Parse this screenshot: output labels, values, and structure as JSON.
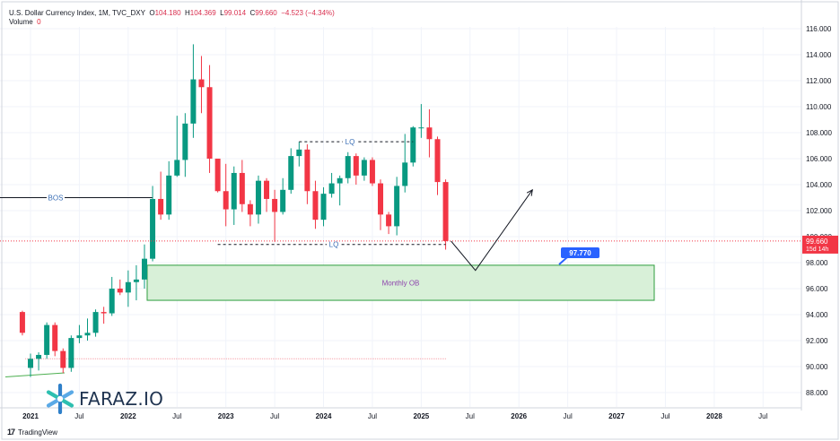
{
  "header": {
    "symbol_line": "U.S. Dollar Currency Index, 1M, TVC_DXY",
    "open_label": "O",
    "open": "104.180",
    "high_label": "H",
    "high": "104.369",
    "low_label": "L",
    "low": "99.014",
    "close_label": "C",
    "close": "99.660",
    "change": "−4.523 (−4.34%)",
    "volume_label": "Volume",
    "volume": "0"
  },
  "price_badge": {
    "price": "99.660",
    "countdown": "15d 14h",
    "color": "#f23645"
  },
  "target_badge": {
    "value": "97.770",
    "color": "#2962ff"
  },
  "annotations": {
    "bos": "BOS",
    "lq_top": "LQ",
    "lq_bottom": "LQ",
    "order_block": "Monthly OB"
  },
  "brand": {
    "name": "FARAZ.IO",
    "icon": "faraz-logo-icon"
  },
  "footer": {
    "logo": "17",
    "name": "TradingView",
    "icon": "tradingview-logo-icon"
  },
  "colors": {
    "up": "#089981",
    "down": "#f23645",
    "ob_fill": "#d8f0d8",
    "ob_border": "#2e9e3e",
    "lq": "#3b6fb6",
    "ob_text": "#8e44ad"
  },
  "chart_data": {
    "type": "candlestick",
    "timeframe": "1M",
    "symbol": "TVC_DXY",
    "y_range": [
      87,
      117
    ],
    "y_ticks": [
      "88.000",
      "90.000",
      "92.000",
      "94.000",
      "96.000",
      "98.000",
      "100.000",
      "102.000",
      "104.000",
      "106.000",
      "108.000",
      "110.000",
      "112.000",
      "114.000",
      "116.000"
    ],
    "x_ticks": [
      "2021",
      "Jul",
      "2022",
      "Jul",
      "2023",
      "Jul",
      "2024",
      "Jul",
      "2025",
      "Jul",
      "2026",
      "Jul",
      "2027",
      "Jul",
      "2028",
      "Jul"
    ],
    "candles": [
      {
        "d": "2020-12",
        "o": 94.2,
        "h": 94.3,
        "l": 92.4,
        "c": 92.6
      },
      {
        "d": "2021-01",
        "o": 89.9,
        "h": 91.0,
        "l": 89.2,
        "c": 90.6
      },
      {
        "d": "2021-02",
        "o": 90.6,
        "h": 91.1,
        "l": 89.7,
        "c": 90.9
      },
      {
        "d": "2021-03",
        "o": 90.9,
        "h": 93.4,
        "l": 90.6,
        "c": 93.2
      },
      {
        "d": "2021-04",
        "o": 93.2,
        "h": 93.4,
        "l": 90.8,
        "c": 91.2
      },
      {
        "d": "2021-05",
        "o": 91.2,
        "h": 91.4,
        "l": 89.5,
        "c": 89.9
      },
      {
        "d": "2021-06",
        "o": 89.9,
        "h": 92.4,
        "l": 89.6,
        "c": 92.2
      },
      {
        "d": "2021-07",
        "o": 92.2,
        "h": 93.2,
        "l": 91.8,
        "c": 92.4
      },
      {
        "d": "2021-08",
        "o": 92.4,
        "h": 93.7,
        "l": 92.0,
        "c": 92.6
      },
      {
        "d": "2021-09",
        "o": 92.6,
        "h": 94.4,
        "l": 92.3,
        "c": 94.2
      },
      {
        "d": "2021-10",
        "o": 94.2,
        "h": 94.6,
        "l": 93.3,
        "c": 94.1
      },
      {
        "d": "2021-11",
        "o": 94.1,
        "h": 96.9,
        "l": 93.9,
        "c": 96.0
      },
      {
        "d": "2021-12",
        "o": 96.0,
        "h": 96.7,
        "l": 95.5,
        "c": 95.7
      },
      {
        "d": "2022-01",
        "o": 95.7,
        "h": 97.4,
        "l": 94.6,
        "c": 96.5
      },
      {
        "d": "2022-02",
        "o": 96.5,
        "h": 97.8,
        "l": 95.1,
        "c": 96.7
      },
      {
        "d": "2022-03",
        "o": 96.7,
        "h": 99.4,
        "l": 96.0,
        "c": 98.3
      },
      {
        "d": "2022-04",
        "o": 98.3,
        "h": 103.9,
        "l": 98.1,
        "c": 102.9
      },
      {
        "d": "2022-05",
        "o": 102.9,
        "h": 105.0,
        "l": 101.3,
        "c": 101.7
      },
      {
        "d": "2022-06",
        "o": 101.7,
        "h": 105.8,
        "l": 101.3,
        "c": 104.7
      },
      {
        "d": "2022-07",
        "o": 104.7,
        "h": 109.3,
        "l": 104.6,
        "c": 105.9
      },
      {
        "d": "2022-08",
        "o": 105.9,
        "h": 109.5,
        "l": 104.6,
        "c": 108.7
      },
      {
        "d": "2022-09",
        "o": 108.7,
        "h": 114.8,
        "l": 107.6,
        "c": 112.1
      },
      {
        "d": "2022-10",
        "o": 112.1,
        "h": 113.9,
        "l": 109.5,
        "c": 111.5
      },
      {
        "d": "2022-11",
        "o": 111.5,
        "h": 113.2,
        "l": 104.9,
        "c": 106.0
      },
      {
        "d": "2022-12",
        "o": 106.0,
        "h": 106.0,
        "l": 103.4,
        "c": 103.5
      },
      {
        "d": "2023-01",
        "o": 103.5,
        "h": 105.6,
        "l": 100.8,
        "c": 102.1
      },
      {
        "d": "2023-02",
        "o": 102.1,
        "h": 105.4,
        "l": 100.9,
        "c": 104.9
      },
      {
        "d": "2023-03",
        "o": 104.9,
        "h": 105.9,
        "l": 101.9,
        "c": 102.5
      },
      {
        "d": "2023-04",
        "o": 102.5,
        "h": 102.8,
        "l": 100.8,
        "c": 101.7
      },
      {
        "d": "2023-05",
        "o": 101.7,
        "h": 104.7,
        "l": 101.0,
        "c": 104.3
      },
      {
        "d": "2023-06",
        "o": 104.3,
        "h": 104.5,
        "l": 101.9,
        "c": 102.9
      },
      {
        "d": "2023-07",
        "o": 102.9,
        "h": 103.6,
        "l": 99.6,
        "c": 101.9
      },
      {
        "d": "2023-08",
        "o": 101.9,
        "h": 104.5,
        "l": 101.7,
        "c": 103.6
      },
      {
        "d": "2023-09",
        "o": 103.6,
        "h": 106.8,
        "l": 103.3,
        "c": 106.2
      },
      {
        "d": "2023-10",
        "o": 106.2,
        "h": 107.3,
        "l": 105.4,
        "c": 106.7
      },
      {
        "d": "2023-11",
        "o": 106.7,
        "h": 107.1,
        "l": 102.5,
        "c": 103.5
      },
      {
        "d": "2023-12",
        "o": 103.5,
        "h": 104.3,
        "l": 100.6,
        "c": 101.3
      },
      {
        "d": "2024-01",
        "o": 101.3,
        "h": 103.8,
        "l": 100.8,
        "c": 103.3
      },
      {
        "d": "2024-02",
        "o": 103.3,
        "h": 104.9,
        "l": 103.0,
        "c": 104.1
      },
      {
        "d": "2024-03",
        "o": 104.1,
        "h": 104.7,
        "l": 102.4,
        "c": 104.5
      },
      {
        "d": "2024-04",
        "o": 104.5,
        "h": 106.5,
        "l": 104.1,
        "c": 106.2
      },
      {
        "d": "2024-05",
        "o": 106.2,
        "h": 106.4,
        "l": 104.0,
        "c": 104.7
      },
      {
        "d": "2024-06",
        "o": 104.7,
        "h": 106.1,
        "l": 104.3,
        "c": 105.9
      },
      {
        "d": "2024-07",
        "o": 105.9,
        "h": 106.1,
        "l": 103.9,
        "c": 104.1
      },
      {
        "d": "2024-08",
        "o": 104.1,
        "h": 104.4,
        "l": 100.5,
        "c": 101.7
      },
      {
        "d": "2024-09",
        "o": 101.7,
        "h": 101.9,
        "l": 100.2,
        "c": 100.8
      },
      {
        "d": "2024-10",
        "o": 100.8,
        "h": 104.6,
        "l": 100.1,
        "c": 103.9
      },
      {
        "d": "2024-11",
        "o": 103.9,
        "h": 107.9,
        "l": 103.4,
        "c": 105.7
      },
      {
        "d": "2024-12",
        "o": 105.7,
        "h": 108.5,
        "l": 105.4,
        "c": 108.4
      },
      {
        "d": "2025-01",
        "o": 108.4,
        "h": 110.2,
        "l": 107.6,
        "c": 108.4
      },
      {
        "d": "2025-02",
        "o": 108.4,
        "h": 109.8,
        "l": 106.1,
        "c": 107.5
      },
      {
        "d": "2025-03",
        "o": 107.5,
        "h": 107.7,
        "l": 103.2,
        "c": 104.2
      },
      {
        "d": "2025-04",
        "o": 104.2,
        "h": 104.4,
        "l": 99.0,
        "c": 99.66
      }
    ],
    "levels": {
      "bos": 103.0,
      "lq_top": 107.3,
      "lq_bottom": 99.4,
      "order_block": [
        95.1,
        97.8
      ],
      "target": 97.77,
      "old_low": 90.6
    },
    "projection": [
      [
        "2025-04",
        99.66
      ],
      [
        "2025-07",
        97.4
      ],
      [
        "2026-02",
        103.6
      ]
    ]
  }
}
